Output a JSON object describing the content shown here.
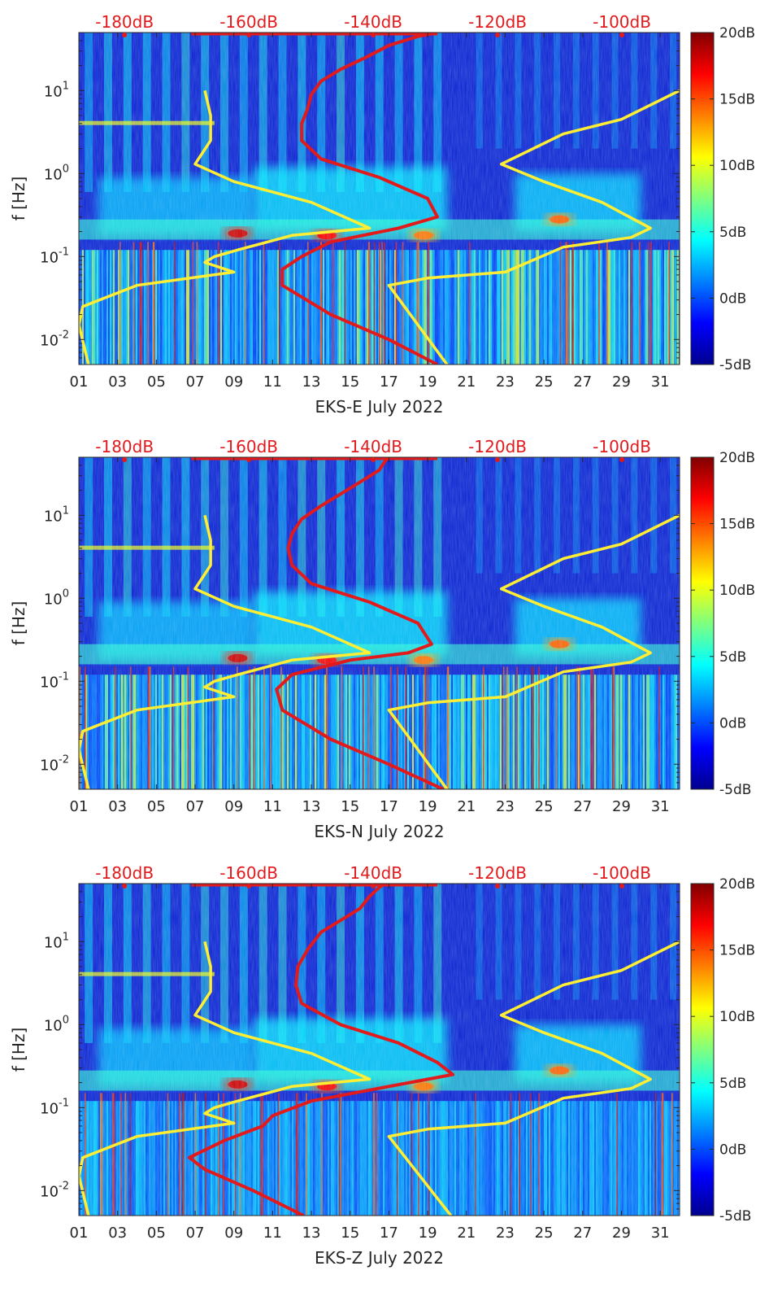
{
  "chart_data": [
    {
      "type": "heatmap",
      "title": "EKS-E",
      "xlabel": "EKS-E July 2022",
      "ylabel": "f [Hz]",
      "x_ticks": [
        "01",
        "03",
        "05",
        "07",
        "09",
        "11",
        "13",
        "15",
        "17",
        "19",
        "21",
        "23",
        "25",
        "27",
        "29",
        "31"
      ],
      "x_range_days": [
        1,
        32
      ],
      "y_scale": "log",
      "y_range_hz": [
        0.005,
        50
      ],
      "y_ticks": [
        {
          "value": 0.01,
          "base": "10",
          "exp": "-2"
        },
        {
          "value": 0.1,
          "base": "10",
          "exp": "-1"
        },
        {
          "value": 1,
          "base": "10",
          "exp": "0"
        },
        {
          "value": 10,
          "base": "10",
          "exp": "1"
        }
      ],
      "top_axis_labels": [
        "-180dB",
        "-160dB",
        "-140dB",
        "-120dB",
        "-100dB"
      ],
      "colorbar": {
        "ticks": [
          "-5dB",
          "0dB",
          "5dB",
          "10dB",
          "15dB",
          "20dB"
        ],
        "range_db": [
          -5,
          20
        ],
        "colormap": "jet"
      },
      "series": [
        {
          "name": "yellow-curve",
          "color": "#ffee33",
          "points": [
            [
              1.5,
              0.005
            ],
            [
              1.0,
              0.015
            ],
            [
              1.2,
              0.025
            ],
            [
              4.0,
              0.045
            ],
            [
              9.0,
              0.065
            ],
            [
              7.5,
              0.085
            ],
            [
              8.0,
              0.1
            ],
            [
              9.2,
              0.12
            ],
            [
              12.0,
              0.18
            ],
            [
              16.0,
              0.22
            ],
            [
              13.0,
              0.45
            ],
            [
              9.0,
              0.8
            ],
            [
              7.0,
              1.3
            ],
            [
              7.8,
              2.5
            ],
            [
              7.8,
              5.0
            ],
            [
              7.5,
              10.0
            ]
          ]
        },
        {
          "name": "yellow-curve-right",
          "color": "#ffee33",
          "points": [
            [
              20.0,
              0.005
            ],
            [
              17.0,
              0.045
            ],
            [
              19.0,
              0.055
            ],
            [
              23.0,
              0.065
            ],
            [
              26.0,
              0.13
            ],
            [
              29.5,
              0.17
            ],
            [
              30.5,
              0.22
            ],
            [
              28.0,
              0.45
            ],
            [
              25.0,
              0.8
            ],
            [
              22.8,
              1.3
            ],
            [
              26.0,
              3.0
            ],
            [
              29.0,
              4.5
            ],
            [
              32.0,
              10.0
            ]
          ]
        },
        {
          "name": "red-curve",
          "color": "#e31a1c",
          "points": [
            [
              19.5,
              0.005
            ],
            [
              17.0,
              0.01
            ],
            [
              14.0,
              0.02
            ],
            [
              11.5,
              0.045
            ],
            [
              11.5,
              0.07
            ],
            [
              12.5,
              0.1
            ],
            [
              14.0,
              0.15
            ],
            [
              17.5,
              0.22
            ],
            [
              19.5,
              0.3
            ],
            [
              19.0,
              0.5
            ],
            [
              16.5,
              0.9
            ],
            [
              13.5,
              1.5
            ],
            [
              12.5,
              2.5
            ],
            [
              12.5,
              4.0
            ],
            [
              12.8,
              6.0
            ],
            [
              13.0,
              9.0
            ],
            [
              13.5,
              13.0
            ],
            [
              14.5,
              18.0
            ],
            [
              15.8,
              25.0
            ],
            [
              17.0,
              35.0
            ],
            [
              18.5,
              45.0
            ],
            [
              19.5,
              50.0
            ]
          ]
        }
      ]
    },
    {
      "type": "heatmap",
      "title": "EKS-N",
      "xlabel": "EKS-N July 2022",
      "ylabel": "f [Hz]",
      "x_ticks": [
        "01",
        "03",
        "05",
        "07",
        "09",
        "11",
        "13",
        "15",
        "17",
        "19",
        "21",
        "23",
        "25",
        "27",
        "29",
        "31"
      ],
      "x_range_days": [
        1,
        32
      ],
      "y_scale": "log",
      "y_range_hz": [
        0.005,
        50
      ],
      "y_ticks": [
        {
          "value": 0.01,
          "base": "10",
          "exp": "-2"
        },
        {
          "value": 0.1,
          "base": "10",
          "exp": "-1"
        },
        {
          "value": 1,
          "base": "10",
          "exp": "0"
        },
        {
          "value": 10,
          "base": "10",
          "exp": "1"
        }
      ],
      "top_axis_labels": [
        "-180dB",
        "-160dB",
        "-140dB",
        "-120dB",
        "-100dB"
      ],
      "colorbar": {
        "ticks": [
          "-5dB",
          "0dB",
          "5dB",
          "10dB",
          "15dB",
          "20dB"
        ],
        "range_db": [
          -5,
          20
        ],
        "colormap": "jet"
      },
      "series": [
        {
          "name": "yellow-curve",
          "color": "#ffee33",
          "points": [
            [
              1.5,
              0.005
            ],
            [
              1.0,
              0.015
            ],
            [
              1.2,
              0.025
            ],
            [
              4.0,
              0.045
            ],
            [
              9.0,
              0.065
            ],
            [
              7.5,
              0.085
            ],
            [
              8.0,
              0.1
            ],
            [
              9.2,
              0.12
            ],
            [
              12.0,
              0.18
            ],
            [
              16.0,
              0.22
            ],
            [
              13.0,
              0.45
            ],
            [
              9.0,
              0.8
            ],
            [
              7.0,
              1.3
            ],
            [
              7.8,
              2.5
            ],
            [
              7.8,
              5.0
            ],
            [
              7.5,
              10.0
            ]
          ]
        },
        {
          "name": "yellow-curve-right",
          "color": "#ffee33",
          "points": [
            [
              20.0,
              0.005
            ],
            [
              17.0,
              0.045
            ],
            [
              19.0,
              0.055
            ],
            [
              23.0,
              0.065
            ],
            [
              26.0,
              0.13
            ],
            [
              29.5,
              0.17
            ],
            [
              30.5,
              0.22
            ],
            [
              28.0,
              0.45
            ],
            [
              25.0,
              0.8
            ],
            [
              22.8,
              1.3
            ],
            [
              26.0,
              3.0
            ],
            [
              29.0,
              4.5
            ],
            [
              32.0,
              10.0
            ]
          ]
        },
        {
          "name": "red-curve",
          "color": "#e31a1c",
          "points": [
            [
              19.8,
              0.005
            ],
            [
              17.0,
              0.01
            ],
            [
              14.0,
              0.02
            ],
            [
              11.5,
              0.045
            ],
            [
              11.2,
              0.08
            ],
            [
              12.0,
              0.12
            ],
            [
              15.0,
              0.18
            ],
            [
              18.0,
              0.22
            ],
            [
              19.2,
              0.28
            ],
            [
              18.5,
              0.5
            ],
            [
              16.0,
              0.9
            ],
            [
              13.0,
              1.5
            ],
            [
              12.0,
              2.5
            ],
            [
              11.8,
              4.0
            ],
            [
              12.0,
              6.0
            ],
            [
              12.5,
              9.0
            ],
            [
              13.5,
              13.0
            ],
            [
              14.5,
              18.0
            ],
            [
              15.5,
              25.0
            ],
            [
              16.5,
              35.0
            ],
            [
              16.8,
              45.0
            ],
            [
              17.0,
              50.0
            ]
          ]
        }
      ]
    },
    {
      "type": "heatmap",
      "title": "EKS-Z",
      "xlabel": "EKS-Z July 2022",
      "ylabel": "f [Hz]",
      "x_ticks": [
        "01",
        "03",
        "05",
        "07",
        "09",
        "11",
        "13",
        "15",
        "17",
        "19",
        "21",
        "23",
        "25",
        "27",
        "29",
        "31"
      ],
      "x_range_days": [
        1,
        32
      ],
      "y_scale": "log",
      "y_range_hz": [
        0.005,
        50
      ],
      "y_ticks": [
        {
          "value": 0.01,
          "base": "10",
          "exp": "-2"
        },
        {
          "value": 0.1,
          "base": "10",
          "exp": "-1"
        },
        {
          "value": 1,
          "base": "10",
          "exp": "0"
        },
        {
          "value": 10,
          "base": "10",
          "exp": "1"
        }
      ],
      "top_axis_labels": [
        "-180dB",
        "-160dB",
        "-140dB",
        "-120dB",
        "-100dB"
      ],
      "colorbar": {
        "ticks": [
          "-5dB",
          "0dB",
          "5dB",
          "10dB",
          "15dB",
          "20dB"
        ],
        "range_db": [
          -5,
          20
        ],
        "colormap": "jet"
      },
      "series": [
        {
          "name": "yellow-curve",
          "color": "#ffee33",
          "points": [
            [
              1.5,
              0.005
            ],
            [
              1.0,
              0.015
            ],
            [
              1.2,
              0.025
            ],
            [
              4.0,
              0.045
            ],
            [
              9.0,
              0.065
            ],
            [
              7.5,
              0.085
            ],
            [
              8.0,
              0.1
            ],
            [
              9.2,
              0.12
            ],
            [
              12.0,
              0.18
            ],
            [
              16.0,
              0.22
            ],
            [
              13.0,
              0.45
            ],
            [
              9.0,
              0.8
            ],
            [
              7.0,
              1.3
            ],
            [
              7.8,
              2.5
            ],
            [
              7.8,
              5.0
            ],
            [
              7.5,
              10.0
            ]
          ]
        },
        {
          "name": "yellow-curve-right",
          "color": "#ffee33",
          "points": [
            [
              20.2,
              0.005
            ],
            [
              17.0,
              0.045
            ],
            [
              19.0,
              0.055
            ],
            [
              23.0,
              0.065
            ],
            [
              26.0,
              0.13
            ],
            [
              29.5,
              0.17
            ],
            [
              30.5,
              0.22
            ],
            [
              28.0,
              0.45
            ],
            [
              25.0,
              0.8
            ],
            [
              22.8,
              1.3
            ],
            [
              26.0,
              3.0
            ],
            [
              29.0,
              4.5
            ],
            [
              32.0,
              10.0
            ]
          ]
        },
        {
          "name": "red-curve",
          "color": "#e31a1c",
          "points": [
            [
              12.6,
              0.005
            ],
            [
              10.0,
              0.01
            ],
            [
              7.5,
              0.018
            ],
            [
              6.7,
              0.025
            ],
            [
              8.5,
              0.04
            ],
            [
              10.5,
              0.06
            ],
            [
              11.0,
              0.08
            ],
            [
              13.0,
              0.12
            ],
            [
              17.0,
              0.18
            ],
            [
              20.3,
              0.25
            ],
            [
              19.5,
              0.35
            ],
            [
              17.5,
              0.6
            ],
            [
              14.5,
              1.0
            ],
            [
              12.5,
              1.8
            ],
            [
              12.2,
              3.0
            ],
            [
              12.3,
              5.0
            ],
            [
              12.8,
              8.0
            ],
            [
              13.5,
              13.0
            ],
            [
              14.5,
              18.0
            ],
            [
              15.5,
              25.0
            ],
            [
              16.0,
              35.0
            ],
            [
              16.5,
              45.0
            ],
            [
              16.8,
              50.0
            ]
          ]
        }
      ]
    }
  ]
}
